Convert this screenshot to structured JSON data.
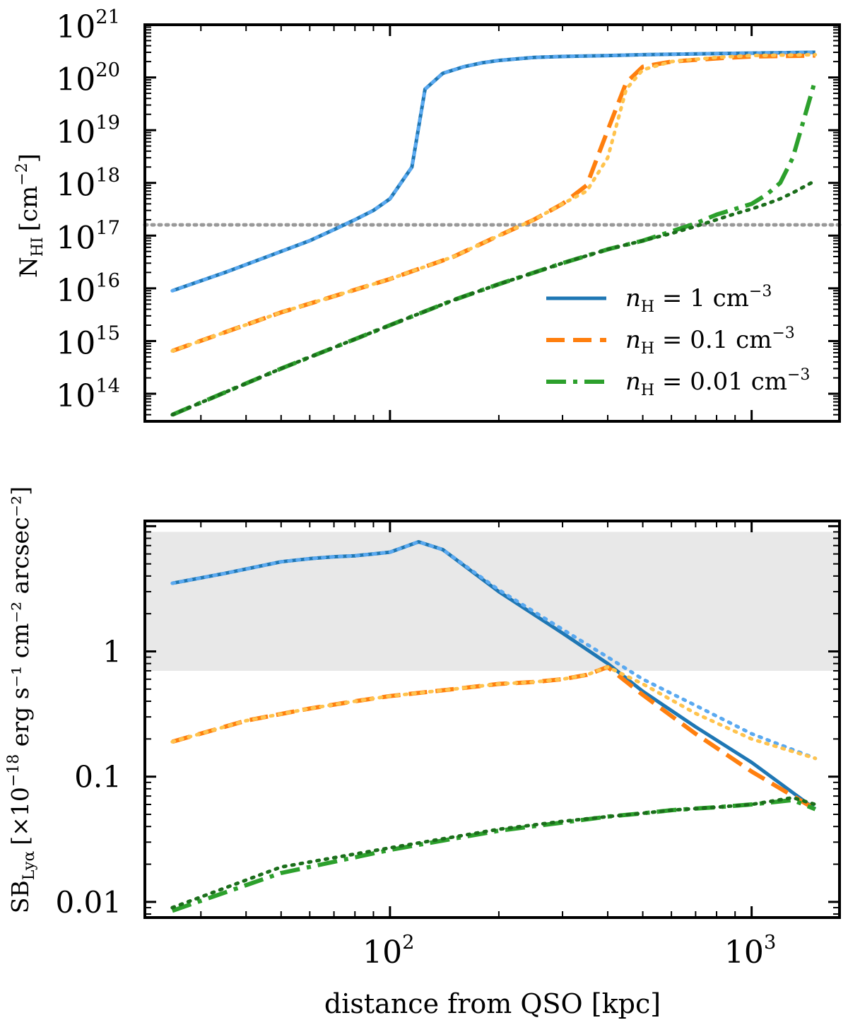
{
  "chart_data": [
    {
      "type": "line",
      "ylabel": "N",
      "ylabel_sub": "HI",
      "ylabel_unit": "[cm",
      "ylabel_unit_exp": "−2",
      "ylabel_unit_end": "]",
      "x_scale": "log",
      "y_scale": "log",
      "xlim": [
        21,
        1750
      ],
      "ylim": [
        30000000000000.0,
        1e+21
      ],
      "y_ticks": [
        {
          "value": 100000000000000.0,
          "base": "10",
          "exp": "14"
        },
        {
          "value": 1000000000000000.0,
          "base": "10",
          "exp": "15"
        },
        {
          "value": 1e+16,
          "base": "10",
          "exp": "16"
        },
        {
          "value": 1e+17,
          "base": "10",
          "exp": "17"
        },
        {
          "value": 1e+18,
          "base": "10",
          "exp": "18"
        },
        {
          "value": 1e+19,
          "base": "10",
          "exp": "19"
        },
        {
          "value": 1e+20,
          "base": "10",
          "exp": "20"
        },
        {
          "value": 1e+21,
          "base": "10",
          "exp": "21"
        }
      ],
      "hline": {
        "value": 1.6e+17,
        "color": "#999999"
      },
      "legend": {
        "position": "lower-right",
        "entries": [
          {
            "label_pre": "n",
            "label_sub": "H",
            "label_mid": " = 1 cm",
            "label_exp": "−3",
            "color": "#1f77b4",
            "style": "solid"
          },
          {
            "label_pre": "n",
            "label_sub": "H",
            "label_mid": " = 0.1 cm",
            "label_exp": "−3",
            "color": "#ff7f0e",
            "style": "dashed"
          },
          {
            "label_pre": "n",
            "label_sub": "H",
            "label_mid": " = 0.01 cm",
            "label_exp": "−3",
            "color": "#2ca02c",
            "style": "dashdot"
          }
        ]
      },
      "series": [
        {
          "color": "#1f77b4",
          "style": "solid",
          "x": [
            25,
            35,
            50,
            60,
            70,
            80,
            90,
            100,
            115,
            125,
            140,
            160,
            180,
            200,
            250,
            300,
            400,
            500,
            700,
            1000,
            1500
          ],
          "y": [
            9000000000000000.0,
            2e+16,
            5e+16,
            8e+16,
            1.3e+17,
            2e+17,
            3e+17,
            5e+17,
            2e+18,
            6e+19,
            1.2e+20,
            1.6e+20,
            1.9e+20,
            2.1e+20,
            2.4e+20,
            2.5e+20,
            2.6e+20,
            2.7e+20,
            2.8e+20,
            2.9e+20,
            3e+20
          ]
        },
        {
          "color": "#5aa9f0",
          "style": "dotted",
          "x": [
            25,
            35,
            50,
            60,
            70,
            80,
            90,
            100,
            115,
            125,
            140,
            160,
            180,
            200,
            250,
            300,
            400,
            500,
            700,
            1000,
            1500
          ],
          "y": [
            9000000000000000.0,
            2e+16,
            5e+16,
            8e+16,
            1.3e+17,
            2e+17,
            3e+17,
            5e+17,
            2e+18,
            6e+19,
            1.2e+20,
            1.6e+20,
            1.9e+20,
            2.1e+20,
            2.4e+20,
            2.5e+20,
            2.6e+20,
            2.7e+20,
            2.8e+20,
            2.9e+20,
            3e+20
          ]
        },
        {
          "color": "#ff7f0e",
          "style": "dashed",
          "x": [
            25,
            50,
            100,
            150,
            200,
            250,
            300,
            350,
            400,
            450,
            500,
            600,
            800,
            1000,
            1500
          ],
          "y": [
            650000000000000.0,
            3500000000000000.0,
            1.5e+16,
            4e+16,
            1e+17,
            2e+17,
            4e+17,
            9e+17,
            1e+19,
            8e+19,
            1.6e+20,
            2e+20,
            2.3e+20,
            2.5e+20,
            2.6e+20
          ]
        },
        {
          "color": "#ffc34d",
          "style": "dotted",
          "x": [
            25,
            50,
            100,
            150,
            200,
            250,
            300,
            350,
            400,
            450,
            500,
            600,
            800,
            1000,
            1500
          ],
          "y": [
            650000000000000.0,
            3500000000000000.0,
            1.5e+16,
            4e+16,
            1e+17,
            2e+17,
            4e+17,
            7e+17,
            3e+18,
            6e+19,
            1.4e+20,
            2e+20,
            2.4e+20,
            2.6e+20,
            2.7e+20
          ]
        },
        {
          "color": "#2ca02c",
          "style": "dashdot",
          "x": [
            25,
            50,
            100,
            150,
            200,
            300,
            400,
            500,
            600,
            700,
            800,
            900,
            1000,
            1100,
            1200,
            1300,
            1500
          ],
          "y": [
            40000000000000.0,
            300000000000000.0,
            2000000000000000.0,
            6000000000000000.0,
            1.2e+16,
            3e+16,
            5.5e+16,
            8e+16,
            1.2e+17,
            1.7e+17,
            2.5e+17,
            3.2e+17,
            4e+17,
            6e+17,
            1e+18,
            3e+18,
            9e+19
          ]
        },
        {
          "color": "#1b6e1b",
          "style": "dotted",
          "x": [
            25,
            50,
            100,
            150,
            200,
            300,
            400,
            500,
            600,
            700,
            800,
            900,
            1000,
            1100,
            1200,
            1300,
            1500
          ],
          "y": [
            40000000000000.0,
            300000000000000.0,
            2000000000000000.0,
            6000000000000000.0,
            1.2e+16,
            3e+16,
            5.5e+16,
            8e+16,
            1.1e+17,
            1.5e+17,
            2e+17,
            2.6e+17,
            3.2e+17,
            4e+17,
            5e+17,
            6.5e+17,
            1.1e+18
          ]
        }
      ]
    },
    {
      "type": "line",
      "ylabel": "SB",
      "ylabel_sub": "Lyα",
      "ylabel_unit": "[×10",
      "ylabel_unit_exp": "−18",
      "ylabel_unit_end": " erg s⁻¹ cm⁻² arcsec⁻²]",
      "xlabel": "distance from QSO [kpc]",
      "x_scale": "log",
      "y_scale": "log",
      "xlim": [
        21,
        1750
      ],
      "ylim": [
        0.0075,
        11
      ],
      "x_ticks": [
        {
          "value": 100,
          "base": "10",
          "exp": "2"
        },
        {
          "value": 1000,
          "base": "10",
          "exp": "3"
        }
      ],
      "y_ticks": [
        {
          "value": 0.01,
          "label": "0.01"
        },
        {
          "value": 0.1,
          "label": "0.1"
        },
        {
          "value": 1,
          "label": "1"
        }
      ],
      "band": {
        "ymin": 0.7,
        "ymax": 9,
        "color": "#e8e8e8"
      },
      "series": [
        {
          "color": "#1f77b4",
          "style": "solid",
          "x": [
            25,
            35,
            50,
            60,
            70,
            80,
            90,
            100,
            120,
            140,
            200,
            300,
            400,
            500,
            700,
            1000,
            1500
          ],
          "y": [
            3.5,
            4.2,
            5.2,
            5.5,
            5.7,
            5.8,
            6.0,
            6.2,
            7.5,
            6.5,
            3.0,
            1.4,
            0.8,
            0.48,
            0.25,
            0.13,
            0.055
          ]
        },
        {
          "color": "#5aa9f0",
          "style": "dotted",
          "x": [
            25,
            35,
            50,
            60,
            70,
            80,
            90,
            100,
            120,
            140,
            200,
            300,
            400,
            500,
            700,
            1000,
            1500
          ],
          "y": [
            3.5,
            4.2,
            5.2,
            5.5,
            5.7,
            5.8,
            6.0,
            6.2,
            7.5,
            6.5,
            3.1,
            1.5,
            0.9,
            0.6,
            0.37,
            0.22,
            0.14
          ]
        },
        {
          "color": "#ff7f0e",
          "style": "dashed",
          "x": [
            25,
            40,
            60,
            80,
            100,
            150,
            200,
            250,
            300,
            350,
            400,
            500,
            700,
            1000,
            1500
          ],
          "y": [
            0.19,
            0.28,
            0.35,
            0.4,
            0.44,
            0.5,
            0.55,
            0.57,
            0.6,
            0.65,
            0.75,
            0.45,
            0.22,
            0.11,
            0.055
          ]
        },
        {
          "color": "#ffc34d",
          "style": "dotted",
          "x": [
            25,
            40,
            60,
            80,
            100,
            150,
            200,
            250,
            300,
            350,
            400,
            500,
            700,
            1000,
            1500
          ],
          "y": [
            0.19,
            0.28,
            0.35,
            0.4,
            0.44,
            0.5,
            0.55,
            0.57,
            0.6,
            0.65,
            0.75,
            0.55,
            0.32,
            0.2,
            0.14
          ]
        },
        {
          "color": "#2ca02c",
          "style": "dashdot",
          "x": [
            25,
            50,
            100,
            150,
            200,
            300,
            400,
            500,
            600,
            800,
            1000,
            1300,
            1500
          ],
          "y": [
            0.0085,
            0.017,
            0.026,
            0.032,
            0.037,
            0.043,
            0.048,
            0.051,
            0.054,
            0.057,
            0.06,
            0.065,
            0.055
          ]
        },
        {
          "color": "#1b6e1b",
          "style": "dotted",
          "x": [
            25,
            50,
            100,
            150,
            200,
            300,
            400,
            500,
            600,
            800,
            1000,
            1300,
            1500
          ],
          "y": [
            0.009,
            0.019,
            0.027,
            0.033,
            0.038,
            0.044,
            0.048,
            0.051,
            0.054,
            0.057,
            0.06,
            0.068,
            0.06
          ]
        }
      ]
    }
  ]
}
